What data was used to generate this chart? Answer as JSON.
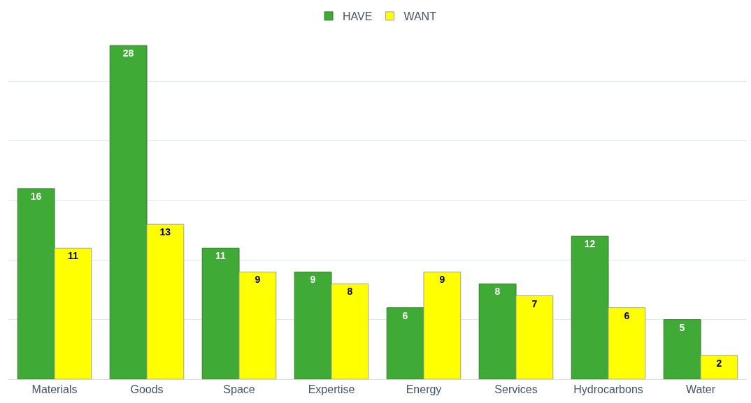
{
  "chart_data": {
    "type": "bar",
    "categories": [
      "Materials",
      "Goods",
      "Space",
      "Expertise",
      "Energy",
      "Services",
      "Hydrocarbons",
      "Water"
    ],
    "series": [
      {
        "name": "HAVE",
        "color": "#3faa35",
        "values": [
          16,
          28,
          11,
          9,
          6,
          8,
          12,
          5
        ]
      },
      {
        "name": "WANT",
        "color": "#ffff00",
        "values": [
          11,
          13,
          9,
          8,
          9,
          7,
          6,
          2
        ]
      }
    ],
    "tick_labels": "x",
    "grid": "y",
    "legend": "top",
    "data_labels": true
  }
}
